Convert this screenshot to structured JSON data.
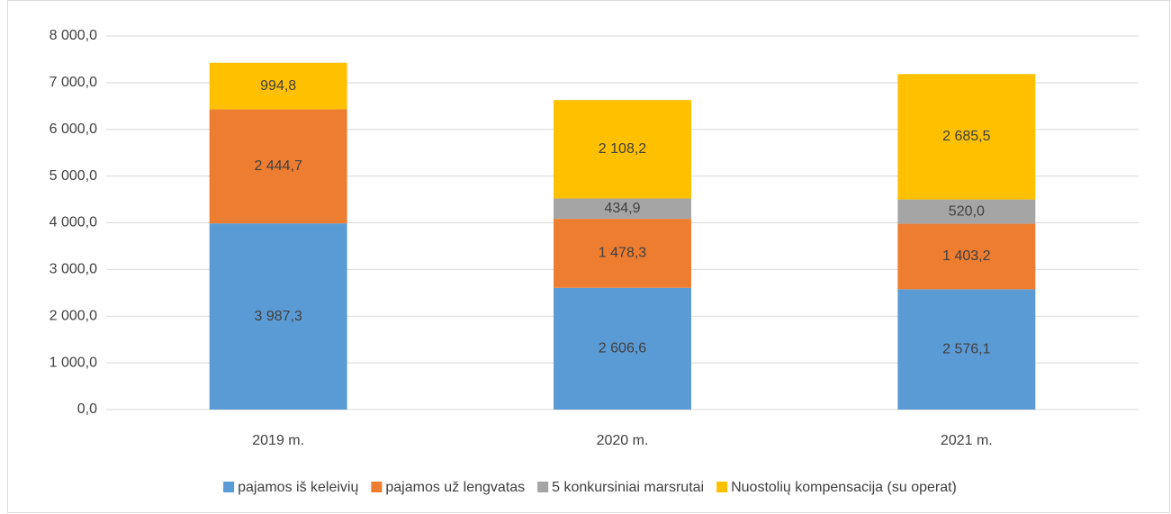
{
  "chart_data": {
    "type": "stacked_bar",
    "categories": [
      "2019 m.",
      "2020 m.",
      "2021 m."
    ],
    "series": [
      {
        "name": "pajamos iš keleivių",
        "color": "#5b9bd5",
        "values": [
          3987.3,
          2606.6,
          2576.1
        ],
        "value_labels": [
          "3 987,3",
          "2 606,6",
          "2 576,1"
        ]
      },
      {
        "name": "pajamos už lengvatas",
        "color": "#ed7d31",
        "values": [
          2444.7,
          1478.3,
          1403.2
        ],
        "value_labels": [
          "2 444,7",
          "1 478,3",
          "1 403,2"
        ]
      },
      {
        "name": "5 konkursiniai marsrutai",
        "color": "#a5a5a5",
        "values": [
          null,
          434.9,
          520.0
        ],
        "value_labels": [
          null,
          "434,9",
          "520,0"
        ]
      },
      {
        "name": "Nuostolių kompensacija (su operat)",
        "color": "#ffc000",
        "values": [
          994.8,
          2108.2,
          2685.5
        ],
        "value_labels": [
          "994,8",
          "2 108,2",
          "2 685,5"
        ]
      }
    ],
    "ylim": [
      0,
      8000
    ],
    "yticks": [
      {
        "value": 0,
        "label": "0,0"
      },
      {
        "value": 1000,
        "label": "1 000,0"
      },
      {
        "value": 2000,
        "label": "2 000,0"
      },
      {
        "value": 3000,
        "label": "3 000,0"
      },
      {
        "value": 4000,
        "label": "4 000,0"
      },
      {
        "value": 5000,
        "label": "5 000,0"
      },
      {
        "value": 6000,
        "label": "6 000,0"
      },
      {
        "value": 7000,
        "label": "7 000,0"
      },
      {
        "value": 8000,
        "label": "8 000,0"
      }
    ],
    "grid": true,
    "legend": "bottom"
  }
}
